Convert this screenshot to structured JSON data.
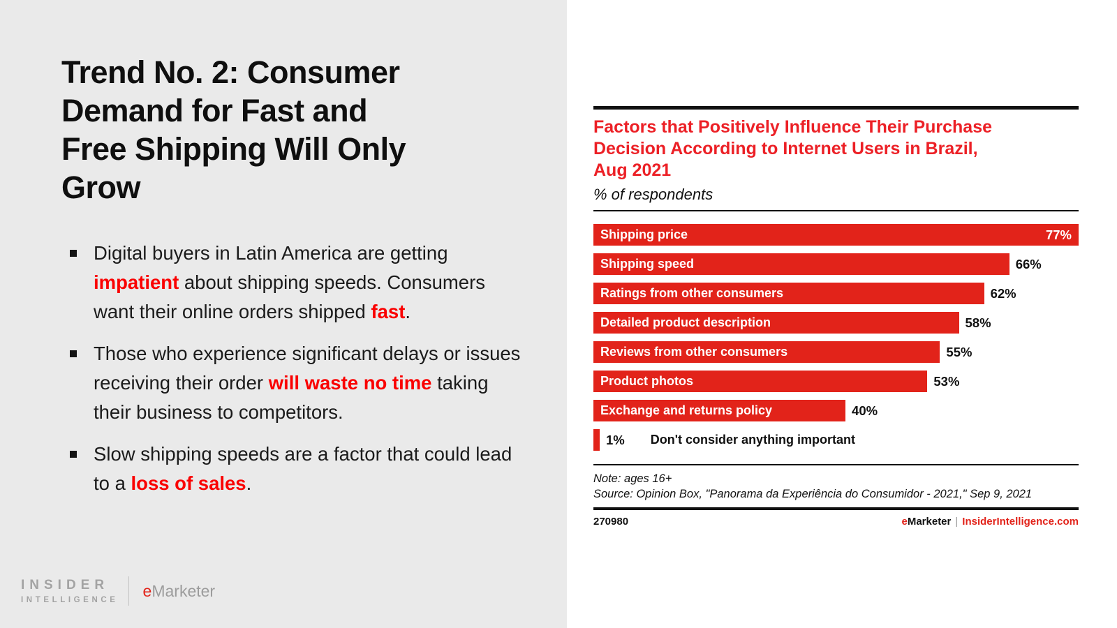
{
  "left_panel": {
    "title_lines": [
      "Trend No. 2: Consumer",
      "Demand for Fast and",
      "Free Shipping Will Only",
      "Grow"
    ],
    "bullets": [
      {
        "segments": [
          {
            "t": "Digital buyers in Latin America are getting ",
            "red": false
          },
          {
            "t": "impatient",
            "red": true
          },
          {
            "t": " about shipping speeds. Consumers want their online orders shipped ",
            "red": false
          },
          {
            "t": "fast",
            "red": true
          },
          {
            "t": ".",
            "red": false
          }
        ]
      },
      {
        "segments": [
          {
            "t": "Those who experience significant delays or issues receiving their order ",
            "red": false
          },
          {
            "t": "will waste no time",
            "red": true
          },
          {
            "t": " taking their business to competitors.",
            "red": false
          }
        ]
      },
      {
        "segments": [
          {
            "t": "Slow shipping speeds are a factor that could lead to a ",
            "red": false
          },
          {
            "t": "loss of sales",
            "red": true
          },
          {
            "t": ".",
            "red": false
          }
        ]
      }
    ],
    "logo": {
      "line1": "INSIDER",
      "line2": "INTELLIGENCE",
      "brand_e": "e",
      "brand_rest": "Marketer"
    }
  },
  "chart": {
    "title_lines": [
      "Factors that Positively Influence Their Purchase",
      "Decision According to Internet Users in Brazil,",
      "Aug 2021"
    ],
    "subtitle": "% of respondents",
    "note": "Note: ages 16+",
    "source": "Source: Opinion Box, \"Panorama da Experiência do Consumidor - 2021,\" Sep 9, 2021",
    "footer_id": "270980",
    "footer_brand_e": "e",
    "footer_brand_rest": "Marketer",
    "footer_sep": "|",
    "footer_site": "InsiderIntelligence.com",
    "colors": {
      "bar_red": "#e2231a",
      "title_red": "#ec2026",
      "accent_red": "#fa0000"
    }
  },
  "chart_data": {
    "type": "bar",
    "orientation": "horizontal",
    "title": "Factors that Positively Influence Their Purchase Decision According to Internet Users in Brazil, Aug 2021",
    "subtitle": "% of respondents",
    "categories": [
      "Shipping price",
      "Shipping speed",
      "Ratings from other consumers",
      "Detailed product description",
      "Reviews from other consumers",
      "Product photos",
      "Exchange and returns policy",
      "Don't consider anything important"
    ],
    "values": [
      77,
      66,
      62,
      58,
      55,
      53,
      40,
      1
    ],
    "value_labels": [
      "77%",
      "66%",
      "62%",
      "58%",
      "55%",
      "53%",
      "40%",
      "1%"
    ],
    "unit": "%",
    "xlim": [
      0,
      77
    ],
    "bar_color": "#e2231a",
    "grid": false,
    "legend": false
  }
}
